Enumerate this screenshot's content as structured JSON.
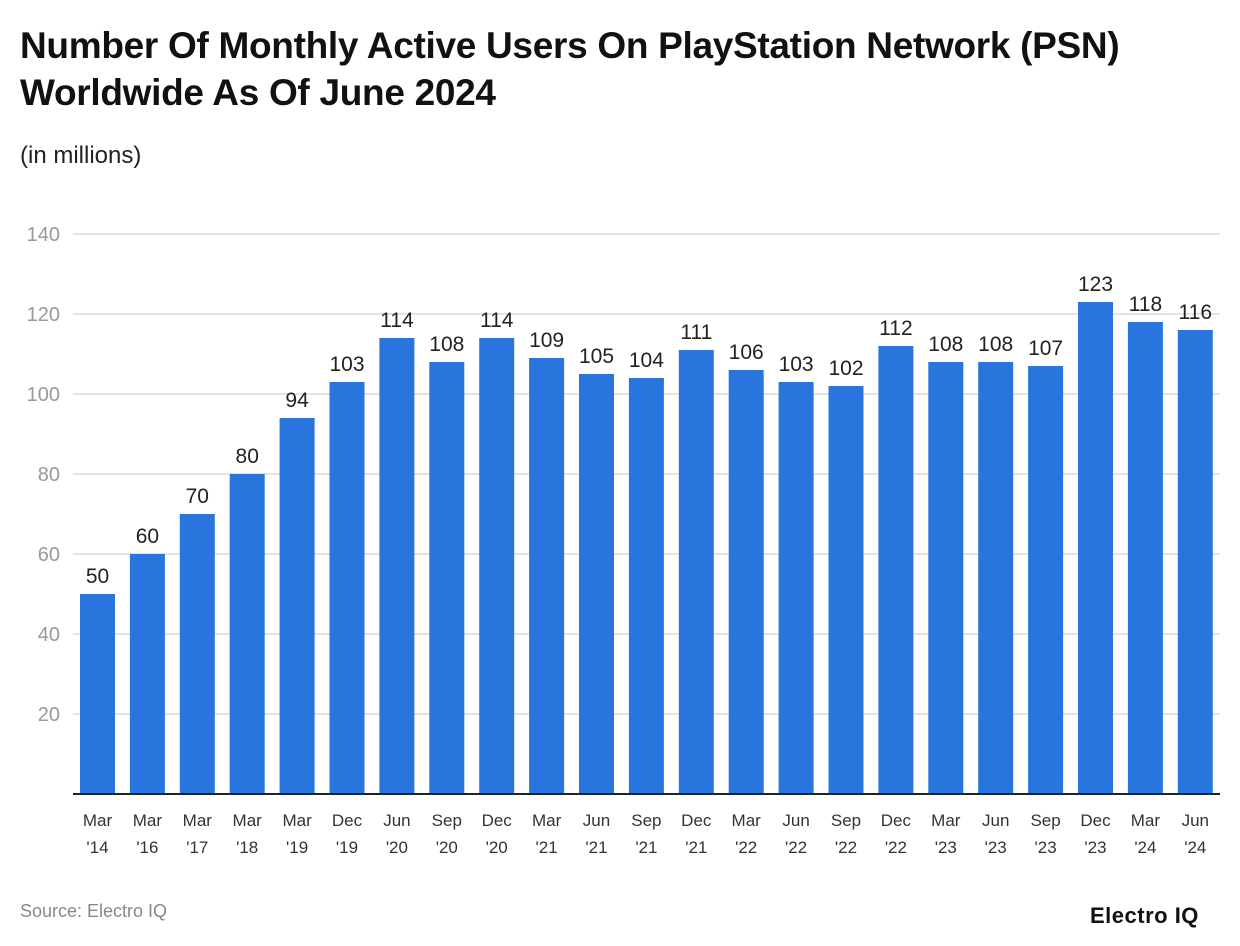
{
  "chart_data": {
    "type": "bar",
    "title": "Number Of Monthly Active Users On PlayStation Network (PSN) Worldwide As Of June 2024",
    "subtitle": "(in millions)",
    "categories": [
      [
        "Mar",
        "'14"
      ],
      [
        "Mar",
        "'16"
      ],
      [
        "Mar",
        "'17"
      ],
      [
        "Mar",
        "'18"
      ],
      [
        "Mar",
        "'19"
      ],
      [
        "Dec",
        "'19"
      ],
      [
        "Jun",
        "'20"
      ],
      [
        "Sep",
        "'20"
      ],
      [
        "Dec",
        "'20"
      ],
      [
        "Mar",
        "'21"
      ],
      [
        "Jun",
        "'21"
      ],
      [
        "Sep",
        "'21"
      ],
      [
        "Dec",
        "'21"
      ],
      [
        "Mar",
        "'22"
      ],
      [
        "Jun",
        "'22"
      ],
      [
        "Sep",
        "'22"
      ],
      [
        "Dec",
        "'22"
      ],
      [
        "Mar",
        "'23"
      ],
      [
        "Jun",
        "'23"
      ],
      [
        "Sep",
        "'23"
      ],
      [
        "Dec",
        "'23"
      ],
      [
        "Mar",
        "'24"
      ],
      [
        "Jun",
        "'24"
      ]
    ],
    "values": [
      50,
      60,
      70,
      80,
      94,
      103,
      114,
      108,
      114,
      109,
      105,
      104,
      111,
      106,
      103,
      102,
      112,
      108,
      108,
      107,
      123,
      118,
      116
    ],
    "ylim": [
      0,
      140
    ],
    "yticks": [
      20,
      40,
      60,
      80,
      100,
      120,
      140
    ],
    "grid": true,
    "bar_color": "#2876DD"
  },
  "source": "Source: Electro IQ",
  "logo": "Electro IQ"
}
